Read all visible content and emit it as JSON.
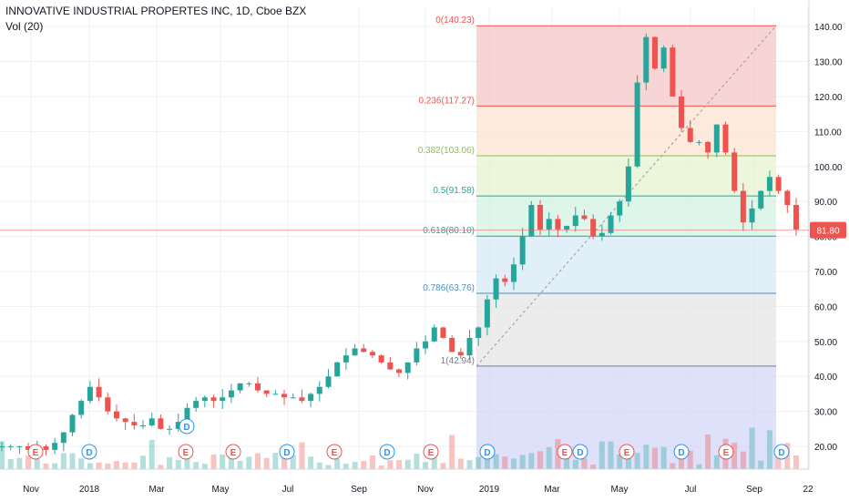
{
  "legend": {
    "title": "INNOVATIVE INDUSTRIAL PROPERTES INC, 1D, Cboe BZX",
    "indicator": "Vol (20)"
  },
  "price_tag": {
    "value": "81.80",
    "color": "#ef5350"
  },
  "colors": {
    "up": "#26a69a",
    "down": "#ef5350",
    "grid": "#eef0f3",
    "axis": "#131722"
  },
  "chart_data": {
    "type": "line",
    "y_axis": {
      "ticks": [
        20,
        30,
        40,
        50,
        60,
        70,
        80,
        90,
        100,
        110,
        120,
        130,
        140
      ],
      "labels": [
        "20.00",
        "30.00",
        "40.00",
        "50.00",
        "60.00",
        "70.00",
        "80.00",
        "90.00",
        "100.00",
        "110.00",
        "120.00",
        "130.00",
        "140.00"
      ],
      "range": [
        13.5,
        145.5
      ]
    },
    "x_axis": {
      "labels": [
        "Nov",
        "2018",
        "Mar",
        "May",
        "Jul",
        "Sep",
        "Nov",
        "2019",
        "Mar",
        "May",
        "Jul",
        "Sep",
        "22"
      ]
    },
    "series": [
      {
        "values": [
          20,
          20,
          20,
          19,
          20,
          19,
          21,
          24,
          29,
          33,
          37,
          34,
          30,
          28,
          27,
          26,
          26,
          28,
          25,
          25,
          27,
          31,
          33,
          34,
          33,
          34,
          36,
          38,
          38,
          36,
          35,
          35,
          34,
          34,
          33,
          35,
          37,
          40,
          44,
          46,
          48,
          47,
          46,
          44,
          42,
          41,
          44,
          48,
          50,
          54,
          51,
          47,
          46,
          51,
          54,
          62,
          68,
          67,
          72,
          80,
          89,
          82,
          85,
          82,
          83,
          86,
          85,
          80,
          81,
          86,
          90,
          100,
          124,
          137,
          128,
          134,
          120,
          111,
          107,
          107,
          104,
          112,
          104,
          93,
          84,
          88,
          93,
          97,
          93,
          89,
          82
        ]
      }
    ],
    "fib_retracement": {
      "levels": [
        {
          "label": "0(140.23)",
          "value": 140.23,
          "color": "#ef5350"
        },
        {
          "label": "0.236(117.27)",
          "value": 117.27,
          "color": "#ef5350"
        },
        {
          "label": "0.382(103.06)",
          "value": 103.06,
          "color": "#8bc34a"
        },
        {
          "label": "0.5(91.58)",
          "value": 91.58,
          "color": "#26a69a"
        },
        {
          "label": "0.618(80.10)",
          "value": 80.1,
          "color": "#26a69a"
        },
        {
          "label": "0.786(63.76)",
          "value": 63.76,
          "color": "#4a90c0"
        },
        {
          "label": "1(42.94)",
          "value": 42.94,
          "color": "#787b86"
        }
      ],
      "zones": [
        {
          "from": 140.23,
          "to": 117.27,
          "color": "#f4c7c7"
        },
        {
          "from": 117.27,
          "to": 103.06,
          "color": "#fbe4d2"
        },
        {
          "from": 103.06,
          "to": 91.58,
          "color": "#e4f3cf"
        },
        {
          "from": 91.58,
          "to": 80.1,
          "color": "#d3f2e3"
        },
        {
          "from": 80.1,
          "to": 63.76,
          "color": "#d6eaf6"
        },
        {
          "from": 63.76,
          "to": 42.94,
          "color": "#e6e6e6"
        },
        {
          "from": 42.94,
          "to": 13.5,
          "color": "#d4d6f7"
        }
      ]
    },
    "event_markers": [
      {
        "kind": "E",
        "color": "#ef5350",
        "row": "low"
      },
      {
        "kind": "D",
        "color": "#2196f3",
        "row": "low"
      },
      {
        "kind": "D",
        "color": "#2196f3",
        "row": "high"
      },
      {
        "kind": "E",
        "color": "#ef5350",
        "row": "low"
      },
      {
        "kind": "E",
        "color": "#ef5350",
        "row": "low"
      },
      {
        "kind": "D",
        "color": "#2196f3",
        "row": "low"
      },
      {
        "kind": "E",
        "color": "#ef5350",
        "row": "low"
      },
      {
        "kind": "D",
        "color": "#2196f3",
        "row": "low"
      },
      {
        "kind": "E",
        "color": "#ef5350",
        "row": "low"
      },
      {
        "kind": "D",
        "color": "#2196f3",
        "row": "low"
      },
      {
        "kind": "E",
        "color": "#ef5350",
        "row": "low"
      },
      {
        "kind": "D",
        "color": "#2196f3",
        "row": "low"
      },
      {
        "kind": "E",
        "color": "#ef5350",
        "row": "low"
      },
      {
        "kind": "D",
        "color": "#2196f3",
        "row": "low"
      },
      {
        "kind": "E",
        "color": "#ef5350",
        "row": "low"
      },
      {
        "kind": "D",
        "color": "#2196f3",
        "row": "low"
      }
    ]
  }
}
